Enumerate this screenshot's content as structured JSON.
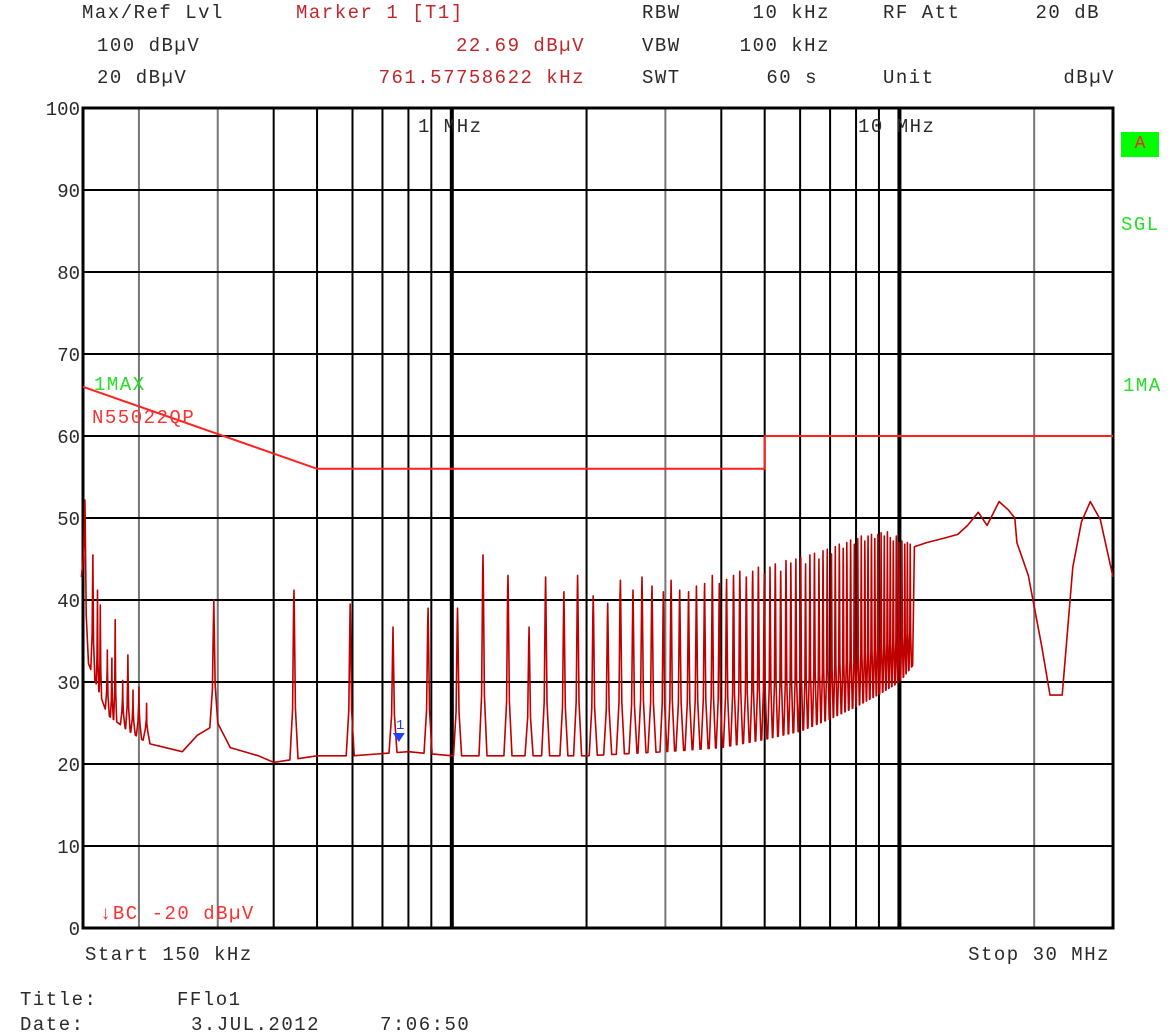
{
  "header": {
    "ref_label": "Max/Ref Lvl",
    "ref_max": "100 dBµV",
    "ref_min": "20 dBµV",
    "marker_label": "Marker 1 [T1]",
    "marker_level": "22.69 dBµV",
    "marker_freq": "761.57758622 kHz",
    "rbw_label": "RBW",
    "rbw_value": "10 kHz",
    "vbw_label": "VBW",
    "vbw_value": "100 kHz",
    "swt_label": "SWT",
    "swt_value": "60 s",
    "att_label": "RF Att",
    "att_value": "20 dB",
    "unit_label": "Unit",
    "unit_value": "dBµV"
  },
  "side": {
    "a_badge": "A",
    "sgl": "SGL",
    "trace_mode": "1MA"
  },
  "footer": {
    "start": "Start 150 kHz",
    "stop": "Stop 30 MHz",
    "title_label": "Title:",
    "title_value": "FFlo1",
    "date_label": "Date:",
    "date_value": "3.JUL.2012",
    "time_value": "7:06:50"
  },
  "colors": {
    "trace": "#c00000",
    "limit": "#ff2020",
    "marker": "#2040ff",
    "status_green": "#22e022",
    "grid": "#000000"
  },
  "chart_data": {
    "type": "line",
    "x_scale": "log",
    "xlim_MHz": [
      0.15,
      30
    ],
    "ylim": [
      0,
      100
    ],
    "ylabel_unit": "dBµV",
    "grid": true,
    "y_ticks": [
      "0",
      "10",
      "20",
      "30",
      "40",
      "50",
      "60",
      "70",
      "80",
      "90",
      "100"
    ],
    "x_tick_labels": [
      {
        "f": 1,
        "label": "1 MHz"
      },
      {
        "f": 10,
        "label": "10 MHz"
      }
    ],
    "trace_label": "1MAX",
    "limit_line": {
      "name": "N55022QP",
      "points": [
        [
          0.15,
          66
        ],
        [
          0.5,
          56
        ],
        [
          5,
          56
        ],
        [
          5,
          60
        ],
        [
          30,
          60
        ]
      ]
    },
    "display_line_label": "↓BC -20 dBµV",
    "marker": {
      "label": "1",
      "freq_MHz": 0.76157758622,
      "level": 22.69
    },
    "trace": {
      "floor": [
        [
          0.15,
          34
        ],
        [
          0.16,
          30
        ],
        [
          0.17,
          26
        ],
        [
          0.19,
          24
        ],
        [
          0.21,
          22.5
        ],
        [
          0.25,
          21.5
        ],
        [
          0.27,
          23.5
        ],
        [
          0.3,
          25
        ],
        [
          0.32,
          22
        ],
        [
          0.37,
          21
        ],
        [
          0.4,
          20.2
        ],
        [
          0.5,
          21
        ],
        [
          0.6,
          21
        ],
        [
          0.8,
          21.5
        ],
        [
          1,
          21
        ],
        [
          2,
          21
        ],
        [
          3,
          21.5
        ],
        [
          4,
          22
        ],
        [
          5,
          23
        ],
        [
          6,
          24
        ],
        [
          7,
          25.5
        ],
        [
          8,
          27
        ],
        [
          9,
          28.5
        ],
        [
          10,
          30
        ],
        [
          10.7,
          32
        ],
        [
          10.8,
          46.5
        ],
        [
          11.5,
          47
        ],
        [
          12.5,
          47.5
        ],
        [
          13.5,
          48
        ],
        [
          14.2,
          49.1
        ],
        [
          15,
          50.7
        ],
        [
          15.7,
          49.1
        ],
        [
          16.7,
          52
        ],
        [
          17.5,
          51
        ],
        [
          18.1,
          50
        ],
        [
          18.3,
          47
        ],
        [
          19.4,
          43
        ],
        [
          20.8,
          34.3
        ],
        [
          21.7,
          28.4
        ],
        [
          23.1,
          28.4
        ],
        [
          24.4,
          44
        ],
        [
          25.5,
          49.5
        ],
        [
          26.7,
          52
        ],
        [
          28.1,
          49.8
        ],
        [
          30,
          42.8
        ]
      ],
      "peaks": [
        [
          0.1515,
          52.2
        ],
        [
          0.1578,
          45.5
        ],
        [
          0.1616,
          41.2
        ],
        [
          0.164,
          39.4
        ],
        [
          0.17,
          33.9
        ],
        [
          0.174,
          32.9
        ],
        [
          0.177,
          37.6
        ],
        [
          0.184,
          30.2
        ],
        [
          0.189,
          33.3
        ],
        [
          0.194,
          29
        ],
        [
          0.2,
          29.4
        ],
        [
          0.208,
          27.4
        ],
        [
          0.294,
          40
        ],
        [
          0.444,
          41.2
        ],
        [
          0.593,
          39.5
        ],
        [
          0.739,
          36.7
        ],
        [
          0.885,
          39
        ],
        [
          1.03,
          39
        ],
        [
          1.174,
          45.5
        ],
        [
          1.335,
          43
        ],
        [
          1.488,
          36.7
        ],
        [
          1.62,
          42.8
        ],
        [
          1.78,
          41
        ],
        [
          1.91,
          43
        ],
        [
          2.07,
          40.5
        ],
        [
          2.23,
          39.6
        ],
        [
          2.38,
          42.4
        ],
        [
          2.54,
          41.2
        ],
        [
          2.66,
          42.8
        ],
        [
          2.8,
          41.7
        ],
        [
          2.97,
          41
        ],
        [
          3.09,
          42.4
        ],
        [
          3.23,
          41.2
        ],
        [
          3.38,
          41
        ],
        [
          3.52,
          41.7
        ],
        [
          3.67,
          42
        ],
        [
          3.82,
          43
        ],
        [
          3.96,
          42
        ],
        [
          4.11,
          42.5
        ],
        [
          4.26,
          43
        ],
        [
          4.4,
          43.5
        ],
        [
          4.55,
          42.8
        ],
        [
          4.7,
          43.5
        ],
        [
          4.84,
          44
        ],
        [
          4.99,
          43.2
        ],
        [
          5.14,
          44
        ],
        [
          5.28,
          44.4
        ],
        [
          5.43,
          43.5
        ],
        [
          5.58,
          44.8
        ],
        [
          5.72,
          44.5
        ],
        [
          5.87,
          45
        ],
        [
          6.02,
          45.2
        ],
        [
          6.17,
          44.4
        ],
        [
          6.31,
          45.5
        ],
        [
          6.46,
          45.7
        ],
        [
          6.61,
          45
        ],
        [
          6.75,
          46
        ],
        [
          6.9,
          46.2
        ],
        [
          7.05,
          45.6
        ],
        [
          7.19,
          46.5
        ],
        [
          7.34,
          46.8
        ],
        [
          7.49,
          46.3
        ],
        [
          7.63,
          47
        ],
        [
          7.78,
          47.3
        ],
        [
          7.93,
          46.8
        ],
        [
          8.07,
          47.5
        ],
        [
          8.22,
          47.8
        ],
        [
          8.37,
          47.2
        ],
        [
          8.51,
          47.8
        ],
        [
          8.66,
          48
        ],
        [
          8.81,
          47.5
        ],
        [
          8.95,
          48
        ],
        [
          9.1,
          48.2
        ],
        [
          9.25,
          47.8
        ],
        [
          9.4,
          48.3
        ],
        [
          9.54,
          47.6
        ],
        [
          9.69,
          47.2
        ],
        [
          9.84,
          47.8
        ],
        [
          9.98,
          47
        ],
        [
          10.13,
          47.2
        ],
        [
          10.28,
          46.8
        ],
        [
          10.42,
          47
        ],
        [
          10.57,
          46.8
        ]
      ]
    }
  }
}
